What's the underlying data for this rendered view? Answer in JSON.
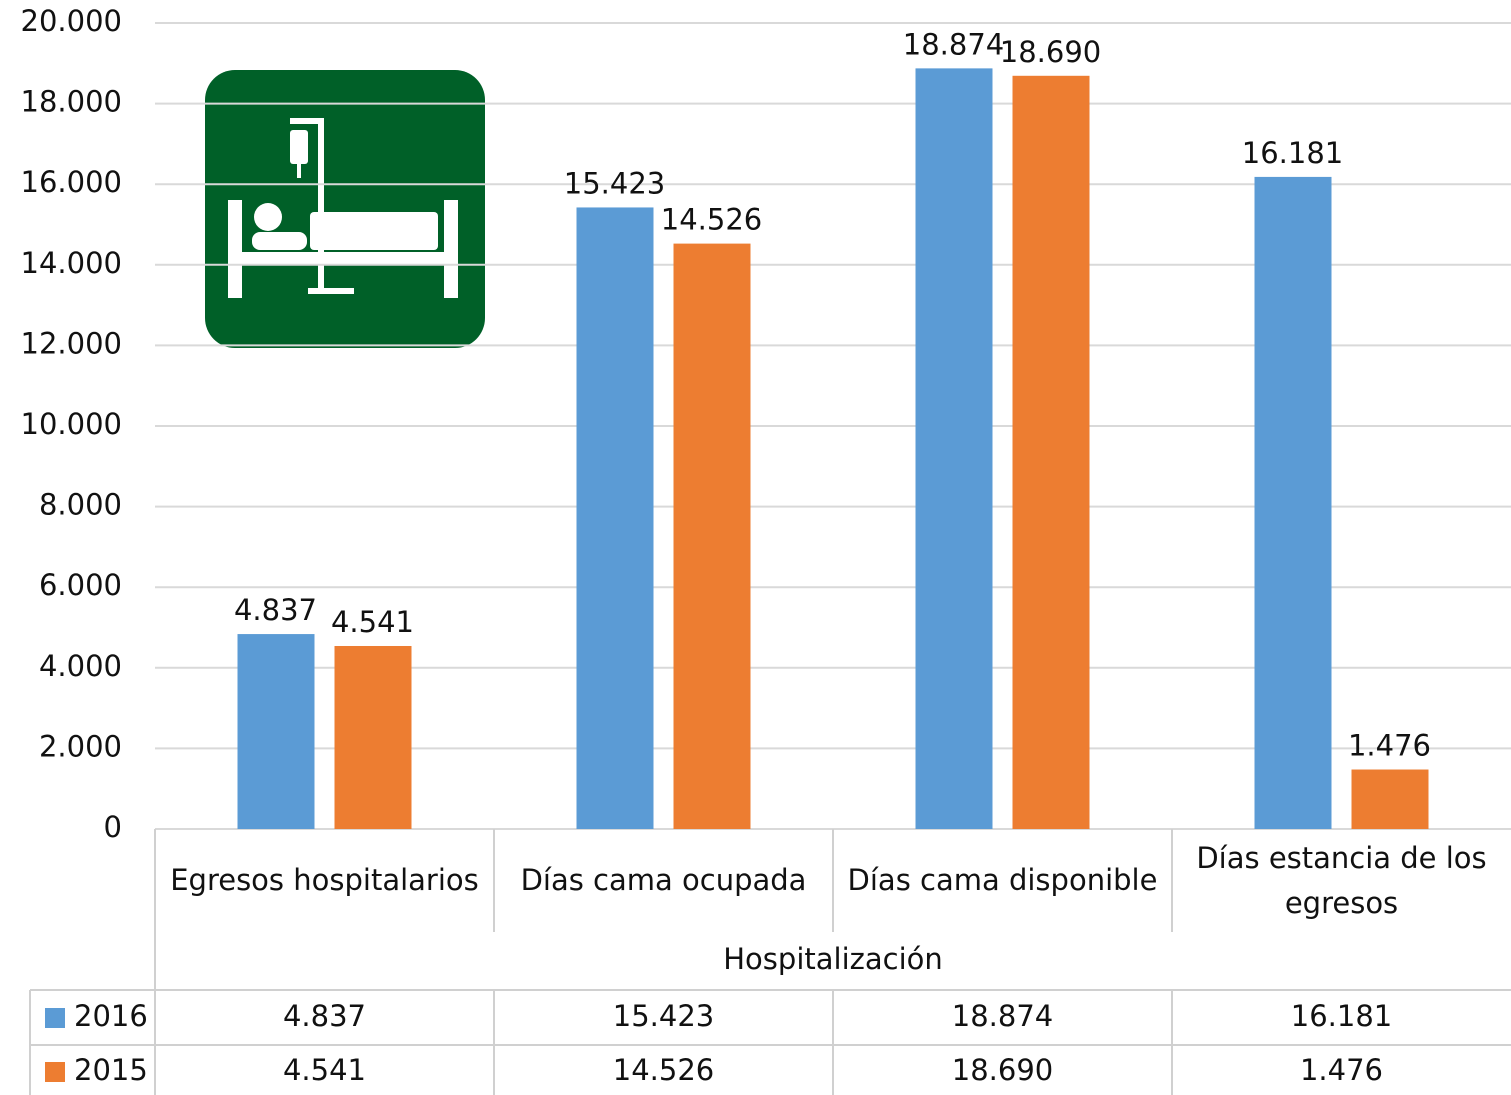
{
  "chart_data": {
    "type": "bar",
    "categories": [
      "Egresos hospitalarios",
      "Días cama ocupada",
      "Días cama disponible",
      "Días estancia de los egresos"
    ],
    "xlabel": "Hospitalización",
    "series": [
      {
        "name": "2016",
        "color": "#5b9bd5",
        "values": [
          4837,
          15423,
          18874,
          16181
        ],
        "value_labels": [
          "4.837",
          "15.423",
          "18.874",
          "16.181"
        ]
      },
      {
        "name": "2015",
        "color": "#ed7d31",
        "values": [
          4541,
          14526,
          18690,
          1476
        ],
        "value_labels": [
          "4.541",
          "14.526",
          "18.690",
          "1.476"
        ]
      }
    ],
    "ylim": [
      0,
      20000
    ],
    "yticks": [
      0,
      {
        "value": 2000,
        "label": "2.000"
      },
      {
        "value": 4000,
        "label": "4.000"
      },
      {
        "value": 6000,
        "label": "6.000"
      },
      {
        "value": 8000,
        "label": "8.000"
      },
      {
        "value": 10000,
        "label": "10.000"
      },
      {
        "value": 12000,
        "label": "12.000"
      },
      {
        "value": 14000,
        "label": "14.000"
      },
      {
        "value": 16000,
        "label": "16.000"
      },
      {
        "value": 18000,
        "label": "18.000"
      },
      {
        "value": 20000,
        "label": "20.000"
      }
    ],
    "grid": true
  }
}
